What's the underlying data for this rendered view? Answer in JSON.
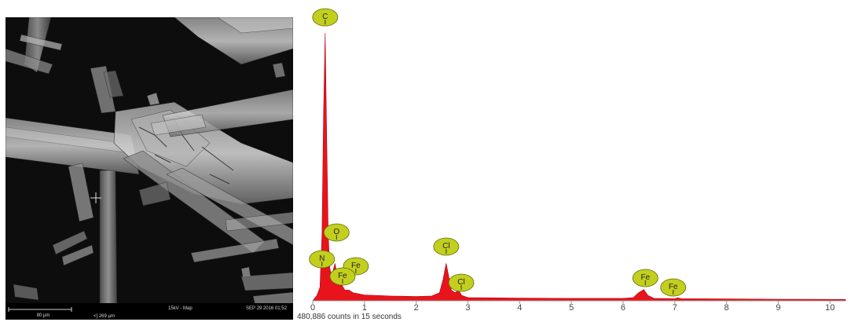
{
  "sem_image": {
    "scale_bar_label": "80 µm",
    "field_width": "<] 269 µm",
    "voltage_mode": "15kV - Map",
    "timestamp": "SEP 29 2016 01:52"
  },
  "colors": {
    "spectrum_fill": "#e8141c",
    "peak_label_fill": "#c3cf1e",
    "peak_label_stroke": "#5a6a00",
    "axis": "#999999"
  },
  "chart_data": {
    "type": "area",
    "title": "",
    "xlabel": "",
    "ylabel": "",
    "xlim": [
      0,
      10.3
    ],
    "ylim": [
      0,
      100
    ],
    "x_ticks": [
      "0",
      "1",
      "2",
      "3",
      "4",
      "5",
      "6",
      "7",
      "8",
      "9",
      "10"
    ],
    "footer": "480,886 counts in 15 seconds",
    "series": [
      {
        "values": [
          {
            "x": 0.0,
            "y": 0
          },
          {
            "x": 0.08,
            "y": 2
          },
          {
            "x": 0.14,
            "y": 5
          },
          {
            "x": 0.18,
            "y": 25
          },
          {
            "x": 0.21,
            "y": 70
          },
          {
            "x": 0.24,
            "y": 100
          },
          {
            "x": 0.27,
            "y": 60
          },
          {
            "x": 0.3,
            "y": 25
          },
          {
            "x": 0.33,
            "y": 12
          },
          {
            "x": 0.36,
            "y": 10
          },
          {
            "x": 0.39,
            "y": 11
          },
          {
            "x": 0.43,
            "y": 14
          },
          {
            "x": 0.47,
            "y": 10
          },
          {
            "x": 0.5,
            "y": 7
          },
          {
            "x": 0.53,
            "y": 7
          },
          {
            "x": 0.56,
            "y": 6
          },
          {
            "x": 0.62,
            "y": 4
          },
          {
            "x": 0.7,
            "y": 4
          },
          {
            "x": 0.78,
            "y": 3
          },
          {
            "x": 1.0,
            "y": 2.2
          },
          {
            "x": 1.5,
            "y": 1.8
          },
          {
            "x": 2.0,
            "y": 1.6
          },
          {
            "x": 2.3,
            "y": 1.8
          },
          {
            "x": 2.45,
            "y": 3
          },
          {
            "x": 2.52,
            "y": 8
          },
          {
            "x": 2.58,
            "y": 14
          },
          {
            "x": 2.63,
            "y": 9
          },
          {
            "x": 2.68,
            "y": 4
          },
          {
            "x": 2.75,
            "y": 3
          },
          {
            "x": 2.82,
            "y": 4
          },
          {
            "x": 2.88,
            "y": 2
          },
          {
            "x": 3.0,
            "y": 1.2
          },
          {
            "x": 4.0,
            "y": 1.0
          },
          {
            "x": 5.0,
            "y": 0.9
          },
          {
            "x": 6.0,
            "y": 0.9
          },
          {
            "x": 6.2,
            "y": 1.2
          },
          {
            "x": 6.3,
            "y": 3
          },
          {
            "x": 6.4,
            "y": 4.2
          },
          {
            "x": 6.48,
            "y": 2
          },
          {
            "x": 6.6,
            "y": 0.9
          },
          {
            "x": 7.0,
            "y": 0.8
          },
          {
            "x": 7.06,
            "y": 1.1
          },
          {
            "x": 7.12,
            "y": 0.8
          },
          {
            "x": 8.0,
            "y": 0.7
          },
          {
            "x": 9.0,
            "y": 0.6
          },
          {
            "x": 10.3,
            "y": 0.5
          }
        ]
      }
    ],
    "peak_labels": [
      {
        "element": "C",
        "x": 0.24,
        "y": 100
      },
      {
        "element": "O",
        "x": 0.43,
        "y": 14
      },
      {
        "element": "N",
        "x": 0.36,
        "y": 10
      },
      {
        "element": "Fe",
        "x": 0.56,
        "y": 7
      },
      {
        "element": "Fe",
        "x": 0.5,
        "y": 7
      },
      {
        "element": "Cl",
        "x": 2.58,
        "y": 14
      },
      {
        "element": "Cl",
        "x": 2.75,
        "y": 4
      },
      {
        "element": "Fe",
        "x": 6.4,
        "y": 4.2
      },
      {
        "element": "Fe",
        "x": 7.06,
        "y": 1.1
      }
    ]
  }
}
